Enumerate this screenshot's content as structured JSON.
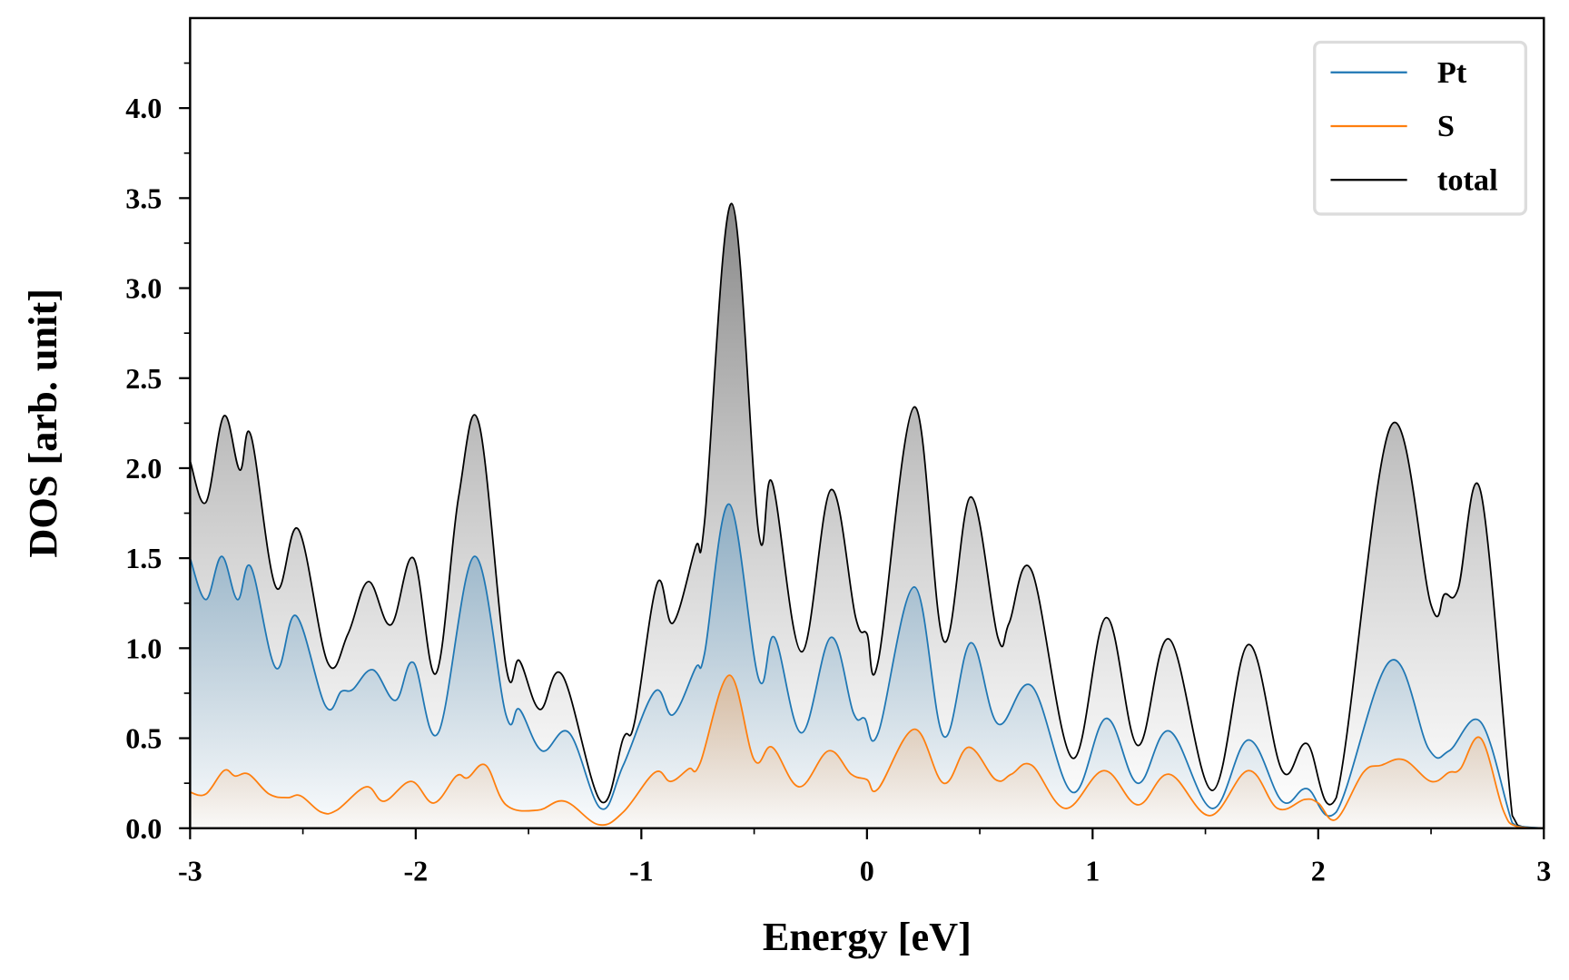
{
  "chart_data": {
    "type": "line",
    "title": "",
    "xlabel": "Energy [eV]",
    "ylabel": "DOS [arb. unit]",
    "xlim": [
      -3,
      3
    ],
    "ylim": [
      0,
      4.5
    ],
    "grid": false,
    "legend_position": "top-right",
    "x_ticks": [
      -3,
      -2,
      -1,
      0,
      1,
      2,
      3
    ],
    "x_tick_labels": [
      "-3",
      "-2",
      "-1",
      "0",
      "1",
      "2",
      "3"
    ],
    "y_ticks": [
      0,
      0.5,
      1,
      1.5,
      2,
      2.5,
      3,
      3.5,
      4
    ],
    "y_tick_labels": [
      "0.0",
      "0.5",
      "1.0",
      "1.5",
      "2.0",
      "2.5",
      "3.0",
      "3.5",
      "4.0"
    ],
    "series": [
      {
        "name": "Pt",
        "color": "#1f77b4",
        "points": [
          [
            -3,
            1.5
          ],
          [
            -2.93,
            1.27
          ],
          [
            -2.86,
            1.51
          ],
          [
            -2.79,
            1.27
          ],
          [
            -2.73,
            1.45
          ],
          [
            -2.62,
            0.89
          ],
          [
            -2.53,
            1.18
          ],
          [
            -2.4,
            0.68
          ],
          [
            -2.33,
            0.76
          ],
          [
            -2.28,
            0.77
          ],
          [
            -2.19,
            0.88
          ],
          [
            -2.09,
            0.71
          ],
          [
            -2.01,
            0.92
          ],
          [
            -1.9,
            0.53
          ],
          [
            -1.74,
            1.51
          ],
          [
            -1.6,
            0.63
          ],
          [
            -1.54,
            0.66
          ],
          [
            -1.44,
            0.43
          ],
          [
            -1.32,
            0.53
          ],
          [
            -1.18,
            0.11
          ],
          [
            -1.08,
            0.35
          ],
          [
            -0.94,
            0.76
          ],
          [
            -0.86,
            0.63
          ],
          [
            -0.76,
            0.89
          ],
          [
            -0.72,
            0.97
          ],
          [
            -0.61,
            1.8
          ],
          [
            -0.48,
            0.83
          ],
          [
            -0.41,
            1.06
          ],
          [
            -0.29,
            0.53
          ],
          [
            -0.16,
            1.06
          ],
          [
            -0.06,
            0.64
          ],
          [
            -0.01,
            0.61
          ],
          [
            0.05,
            0.53
          ],
          [
            0.21,
            1.34
          ],
          [
            0.34,
            0.51
          ],
          [
            0.46,
            1.03
          ],
          [
            0.58,
            0.58
          ],
          [
            0.73,
            0.79
          ],
          [
            0.91,
            0.2
          ],
          [
            1.06,
            0.61
          ],
          [
            1.2,
            0.25
          ],
          [
            1.34,
            0.54
          ],
          [
            1.53,
            0.11
          ],
          [
            1.69,
            0.49
          ],
          [
            1.84,
            0.15
          ],
          [
            1.95,
            0.22
          ],
          [
            2.08,
            0.09
          ],
          [
            2.32,
            0.93
          ],
          [
            2.49,
            0.44
          ],
          [
            2.58,
            0.43
          ],
          [
            2.72,
            0.59
          ],
          [
            2.86,
            0.03
          ],
          [
            2.9,
            0.01
          ],
          [
            3,
            0
          ]
        ]
      },
      {
        "name": "S",
        "color": "#ff7f0e",
        "points": [
          [
            -3,
            0.2
          ],
          [
            -2.93,
            0.19
          ],
          [
            -2.85,
            0.32
          ],
          [
            -2.8,
            0.29
          ],
          [
            -2.74,
            0.3
          ],
          [
            -2.65,
            0.19
          ],
          [
            -2.57,
            0.17
          ],
          [
            -2.51,
            0.18
          ],
          [
            -2.42,
            0.09
          ],
          [
            -2.35,
            0.1
          ],
          [
            -2.22,
            0.23
          ],
          [
            -2.14,
            0.15
          ],
          [
            -2.02,
            0.26
          ],
          [
            -1.92,
            0.14
          ],
          [
            -1.82,
            0.29
          ],
          [
            -1.77,
            0.28
          ],
          [
            -1.69,
            0.35
          ],
          [
            -1.6,
            0.13
          ],
          [
            -1.46,
            0.1
          ],
          [
            -1.34,
            0.15
          ],
          [
            -1.19,
            0.02
          ],
          [
            -1.08,
            0.09
          ],
          [
            -0.94,
            0.31
          ],
          [
            -0.87,
            0.26
          ],
          [
            -0.79,
            0.33
          ],
          [
            -0.74,
            0.36
          ],
          [
            -0.61,
            0.85
          ],
          [
            -0.5,
            0.38
          ],
          [
            -0.42,
            0.45
          ],
          [
            -0.3,
            0.23
          ],
          [
            -0.17,
            0.43
          ],
          [
            -0.07,
            0.3
          ],
          [
            0,
            0.27
          ],
          [
            0.05,
            0.22
          ],
          [
            0.21,
            0.55
          ],
          [
            0.34,
            0.25
          ],
          [
            0.45,
            0.45
          ],
          [
            0.57,
            0.27
          ],
          [
            0.64,
            0.3
          ],
          [
            0.73,
            0.35
          ],
          [
            0.88,
            0.11
          ],
          [
            1.05,
            0.32
          ],
          [
            1.2,
            0.13
          ],
          [
            1.34,
            0.3
          ],
          [
            1.52,
            0.07
          ],
          [
            1.69,
            0.32
          ],
          [
            1.82,
            0.11
          ],
          [
            1.94,
            0.16
          ],
          [
            2,
            0.14
          ],
          [
            2.08,
            0.05
          ],
          [
            2.2,
            0.31
          ],
          [
            2.28,
            0.35
          ],
          [
            2.38,
            0.38
          ],
          [
            2.5,
            0.26
          ],
          [
            2.58,
            0.31
          ],
          [
            2.63,
            0.33
          ],
          [
            2.72,
            0.5
          ],
          [
            2.82,
            0.1
          ],
          [
            2.88,
            0.01
          ],
          [
            3,
            0
          ]
        ]
      },
      {
        "name": "total",
        "color": "#000000",
        "points": [
          [
            -3,
            2.04
          ],
          [
            -2.93,
            1.81
          ],
          [
            -2.85,
            2.29
          ],
          [
            -2.78,
            1.99
          ],
          [
            -2.73,
            2.18
          ],
          [
            -2.62,
            1.34
          ],
          [
            -2.52,
            1.66
          ],
          [
            -2.39,
            0.92
          ],
          [
            -2.3,
            1.08
          ],
          [
            -2.21,
            1.37
          ],
          [
            -2.11,
            1.13
          ],
          [
            -2.01,
            1.5
          ],
          [
            -1.91,
            0.86
          ],
          [
            -1.81,
            1.84
          ],
          [
            -1.72,
            2.25
          ],
          [
            -1.6,
            0.9
          ],
          [
            -1.54,
            0.93
          ],
          [
            -1.45,
            0.66
          ],
          [
            -1.35,
            0.85
          ],
          [
            -1.18,
            0.15
          ],
          [
            -1.08,
            0.5
          ],
          [
            -1.03,
            0.59
          ],
          [
            -0.93,
            1.36
          ],
          [
            -0.86,
            1.14
          ],
          [
            -0.76,
            1.56
          ],
          [
            -0.72,
            1.7
          ],
          [
            -0.6,
            3.47
          ],
          [
            -0.48,
            1.64
          ],
          [
            -0.42,
            1.92
          ],
          [
            -0.29,
            0.98
          ],
          [
            -0.16,
            1.88
          ],
          [
            -0.05,
            1.17
          ],
          [
            0,
            1.08
          ],
          [
            0.05,
            0.93
          ],
          [
            0.21,
            2.34
          ],
          [
            0.34,
            1.04
          ],
          [
            0.46,
            1.84
          ],
          [
            0.58,
            1.06
          ],
          [
            0.63,
            1.14
          ],
          [
            0.73,
            1.43
          ],
          [
            0.91,
            0.39
          ],
          [
            1.06,
            1.17
          ],
          [
            1.2,
            0.46
          ],
          [
            1.34,
            1.05
          ],
          [
            1.53,
            0.21
          ],
          [
            1.69,
            1.02
          ],
          [
            1.84,
            0.32
          ],
          [
            1.95,
            0.47
          ],
          [
            2.08,
            0.17
          ],
          [
            2.32,
            2.23
          ],
          [
            2.5,
            1.24
          ],
          [
            2.56,
            1.3
          ],
          [
            2.62,
            1.33
          ],
          [
            2.72,
            1.87
          ],
          [
            2.86,
            0.07
          ],
          [
            2.9,
            0.01
          ],
          [
            3,
            0
          ]
        ]
      }
    ]
  }
}
